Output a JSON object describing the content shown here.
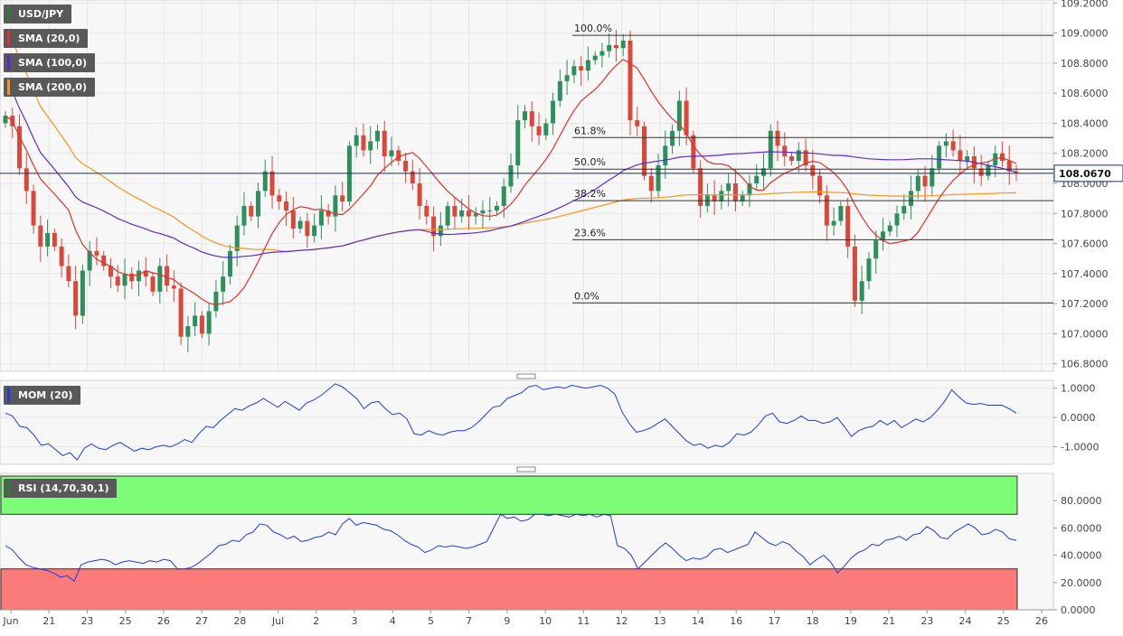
{
  "chart_data": {
    "type": "candlestick",
    "symbol": "USD/JPY",
    "x_labels": [
      "Jun",
      "21",
      "23",
      "25",
      "26",
      "27",
      "28",
      "Jul",
      "2",
      "3",
      "4",
      "5",
      "7",
      "9",
      "10",
      "11",
      "12",
      "13",
      "14",
      "16",
      "17",
      "18",
      "19",
      "21",
      "23",
      "24",
      "25",
      "26"
    ],
    "price_axis": {
      "ylim": [
        106.75,
        109.22
      ],
      "ticks": [
        "109.2000",
        "109.0000",
        "108.8000",
        "108.6000",
        "108.4000",
        "108.2000",
        "108.0000",
        "107.8000",
        "107.6000",
        "107.4000",
        "107.2000",
        "107.0000",
        "106.8000"
      ],
      "last_price": "108.0670",
      "last_value": 108.067
    },
    "indicators": [
      {
        "name": "SMA (20,0)",
        "color": "#e0312b"
      },
      {
        "name": "SMA (100,0)",
        "color": "#5a2ad0"
      },
      {
        "name": "SMA (200,0)",
        "color": "#f5961e"
      }
    ],
    "fibonacci": [
      {
        "label": "100.0%",
        "value": 108.985
      },
      {
        "label": "61.8%",
        "value": 108.305
      },
      {
        "label": "50.0%",
        "value": 108.095
      },
      {
        "label": "38.2%",
        "value": 107.885
      },
      {
        "label": "23.6%",
        "value": 107.625
      },
      {
        "label": "0.0%",
        "value": 107.205
      }
    ],
    "close": [
      108.45,
      108.38,
      108.1,
      107.95,
      107.72,
      107.58,
      107.67,
      107.58,
      107.45,
      107.35,
      107.12,
      107.42,
      107.55,
      107.52,
      107.45,
      107.38,
      107.32,
      107.4,
      107.35,
      107.42,
      107.38,
      107.28,
      107.45,
      107.32,
      107.3,
      106.98,
      107.05,
      107.12,
      107.0,
      107.15,
      107.28,
      107.38,
      107.55,
      107.72,
      107.85,
      107.78,
      107.95,
      108.08,
      107.92,
      107.88,
      107.82,
      107.7,
      107.75,
      107.65,
      107.72,
      107.82,
      107.78,
      107.92,
      107.88,
      108.25,
      108.32,
      108.22,
      108.28,
      108.35,
      108.18,
      108.22,
      108.15,
      108.08,
      108.0,
      107.85,
      107.78,
      107.65,
      107.72,
      107.85,
      107.78,
      107.82,
      107.78,
      107.8,
      107.82,
      107.82,
      107.85,
      107.98,
      108.12,
      108.42,
      108.48,
      108.38,
      108.32,
      108.4,
      108.55,
      108.68,
      108.72,
      108.78,
      108.75,
      108.82,
      108.85,
      108.88,
      108.92,
      108.9,
      108.95,
      108.42,
      108.38,
      108.05,
      107.95,
      108.12,
      108.25,
      108.35,
      108.55,
      108.32,
      108.1,
      107.85,
      107.92,
      107.88,
      107.95,
      108.0,
      107.88,
      107.92,
      108.0,
      108.05,
      108.1,
      108.35,
      108.25,
      108.18,
      108.15,
      108.22,
      108.12,
      108.05,
      107.92,
      107.72,
      107.75,
      107.85,
      107.58,
      107.22,
      107.35,
      107.5,
      107.62,
      107.68,
      107.72,
      107.8,
      107.85,
      107.95,
      108.05,
      107.98,
      108.1,
      108.25,
      108.28,
      108.22,
      108.15,
      108.18,
      108.1,
      108.05,
      108.12,
      108.2,
      108.15,
      108.08,
      108.07
    ],
    "momentum": {
      "ylim": [
        -1.6,
        1.27
      ],
      "ticks": [
        "1.0000",
        "0.0000",
        "-1.0000"
      ],
      "values": [
        0.15,
        0.05,
        -0.3,
        -0.35,
        -0.6,
        -0.95,
        -0.9,
        -1.1,
        -1.3,
        -1.2,
        -1.45,
        -1.05,
        -0.9,
        -1.05,
        -1.1,
        -0.95,
        -0.85,
        -1.0,
        -1.15,
        -1.05,
        -1.1,
        -1.0,
        -0.95,
        -1.0,
        -0.9,
        -0.75,
        -0.85,
        -0.55,
        -0.3,
        -0.35,
        -0.1,
        0.1,
        0.3,
        0.25,
        0.4,
        0.5,
        0.65,
        0.5,
        0.35,
        0.55,
        0.4,
        0.25,
        0.5,
        0.6,
        0.75,
        0.95,
        1.15,
        1.05,
        0.85,
        0.65,
        0.3,
        0.5,
        0.55,
        0.3,
        0.1,
        0.15,
        -0.05,
        -0.55,
        -0.6,
        -0.45,
        -0.55,
        -0.6,
        -0.5,
        -0.45,
        -0.45,
        -0.35,
        -0.15,
        0.1,
        0.35,
        0.4,
        0.65,
        0.75,
        0.85,
        1.05,
        1.1,
        0.95,
        1.0,
        1.05,
        1.0,
        1.1,
        1.05,
        1.0,
        1.05,
        1.1,
        1.0,
        0.8,
        0.2,
        -0.2,
        -0.5,
        -0.45,
        -0.35,
        -0.2,
        -0.05,
        -0.3,
        -0.55,
        -0.8,
        -0.95,
        -0.9,
        -1.05,
        -0.95,
        -1.0,
        -0.85,
        -0.55,
        -0.6,
        -0.5,
        -0.25,
        0.05,
        0.15,
        -0.15,
        -0.2,
        -0.1,
        0.05,
        -0.1,
        -0.1,
        -0.2,
        -0.15,
        0.0,
        -0.3,
        -0.65,
        -0.45,
        -0.35,
        -0.3,
        -0.1,
        -0.25,
        -0.1,
        -0.35,
        -0.2,
        -0.05,
        -0.15,
        0.0,
        0.25,
        0.55,
        0.95,
        0.7,
        0.5,
        0.45,
        0.48,
        0.42,
        0.42,
        0.42,
        0.3,
        0.15
      ]
    },
    "rsi": {
      "ylim": [
        0,
        100
      ],
      "ticks": [
        "80.0000",
        "60.0000",
        "40.0000",
        "20.0000",
        "0.0000"
      ],
      "overbought": 70,
      "oversold": 30,
      "colors": {
        "overbought_fill": "#7dfc78",
        "oversold_fill": "#fb7b7b",
        "line": "#1f3be0"
      },
      "values": [
        47,
        44,
        38,
        33,
        31,
        30,
        29,
        27,
        24,
        25,
        21,
        33,
        35,
        36,
        37,
        36,
        33,
        35,
        36,
        35,
        34,
        36,
        35,
        37,
        36,
        30,
        30,
        31,
        34,
        38,
        42,
        47,
        48,
        51,
        50,
        55,
        57,
        63,
        62,
        57,
        55,
        52,
        54,
        50,
        51,
        53,
        54,
        57,
        55,
        63,
        67,
        62,
        64,
        63,
        62,
        59,
        58,
        55,
        51,
        48,
        46,
        42,
        44,
        47,
        46,
        47,
        46,
        45,
        46,
        48,
        50,
        60,
        70,
        67,
        68,
        65,
        66,
        70,
        70,
        69,
        70,
        69,
        68,
        70,
        69,
        70,
        68,
        70,
        69,
        47,
        45,
        40,
        30,
        35,
        40,
        45,
        49,
        45,
        40,
        36,
        38,
        37,
        39,
        44,
        45,
        42,
        44,
        46,
        48,
        57,
        53,
        49,
        47,
        50,
        48,
        43,
        39,
        33,
        37,
        40,
        35,
        27,
        32,
        38,
        42,
        44,
        48,
        47,
        51,
        52,
        54,
        51,
        55,
        56,
        61,
        58,
        53,
        52,
        57,
        60,
        63,
        60,
        55,
        56,
        59,
        57,
        52,
        51
      ],
      "name": "RSI (14,70,30,1)"
    },
    "momentum_name": "MOM (20)"
  }
}
